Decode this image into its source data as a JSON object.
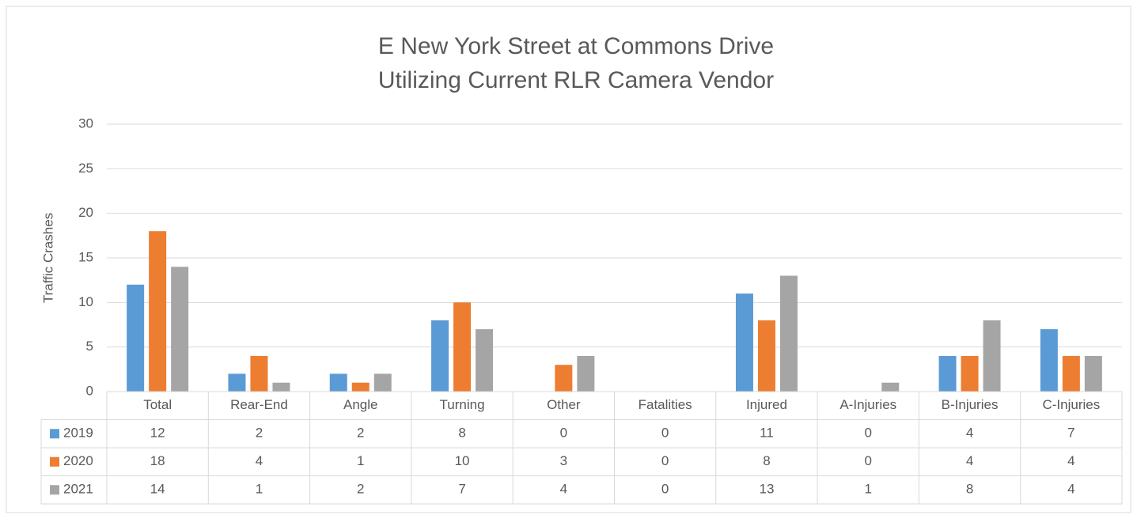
{
  "chart_data": {
    "type": "bar",
    "title": "E New York Street at Commons Drive",
    "subtitle": "Utilizing Current RLR Camera Vendor",
    "y_label": "Traffic Crashes",
    "categories": [
      "Total",
      "Rear-End",
      "Angle",
      "Turning",
      "Other",
      "Fatalities",
      "Injured",
      "A-Injuries",
      "B-Injuries",
      "C-Injuries"
    ],
    "series": [
      {
        "name": "2019",
        "color": "#5b9bd5",
        "values": [
          12,
          2,
          2,
          8,
          0,
          0,
          11,
          0,
          4,
          7
        ]
      },
      {
        "name": "2020",
        "color": "#ed7d31",
        "values": [
          18,
          4,
          1,
          10,
          3,
          0,
          8,
          0,
          4,
          4
        ]
      },
      {
        "name": "2021",
        "color": "#a5a5a5",
        "values": [
          14,
          1,
          2,
          7,
          4,
          0,
          13,
          1,
          8,
          4
        ]
      }
    ],
    "ylim": [
      0,
      30
    ],
    "yticks": [
      0,
      5,
      10,
      15,
      20,
      25,
      30
    ],
    "grid": true,
    "data_table": true
  }
}
